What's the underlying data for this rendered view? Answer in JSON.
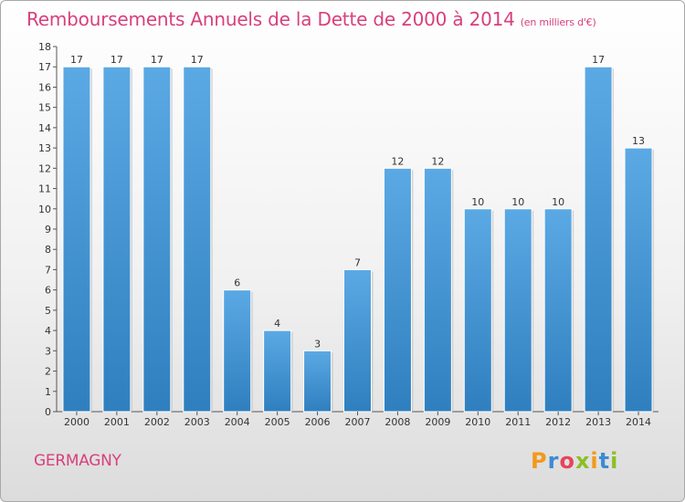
{
  "chart_data": {
    "type": "bar",
    "title": "Remboursements Annuels de la Dette de 2000 à 2014",
    "subtitle": "(en milliers d'€)",
    "categories": [
      "2000",
      "2001",
      "2002",
      "2003",
      "2004",
      "2005",
      "2006",
      "2007",
      "2008",
      "2009",
      "2010",
      "2011",
      "2012",
      "2013",
      "2014"
    ],
    "values": [
      17,
      17,
      17,
      17,
      6,
      4,
      3,
      7,
      12,
      12,
      10,
      10,
      10,
      17,
      13
    ],
    "ylim": [
      0,
      18
    ],
    "yticks": [
      0,
      1,
      2,
      3,
      4,
      5,
      6,
      7,
      8,
      9,
      10,
      11,
      12,
      13,
      14,
      15,
      16,
      17,
      18
    ],
    "xlabel": "",
    "ylabel": "",
    "grid": false,
    "bar_color_top": "#5ba9e4",
    "bar_color_bottom": "#2f7fbf"
  },
  "footer": {
    "commune": "GERMAGNY",
    "brand_letters": [
      "P",
      "r",
      "o",
      "x",
      "i",
      "t",
      "i"
    ],
    "brand_colors": [
      "#f29a1d",
      "#3d8bd4",
      "#e8445a",
      "#8cbf26",
      "#f29a1d",
      "#3d8bd4",
      "#8cbf26"
    ]
  }
}
